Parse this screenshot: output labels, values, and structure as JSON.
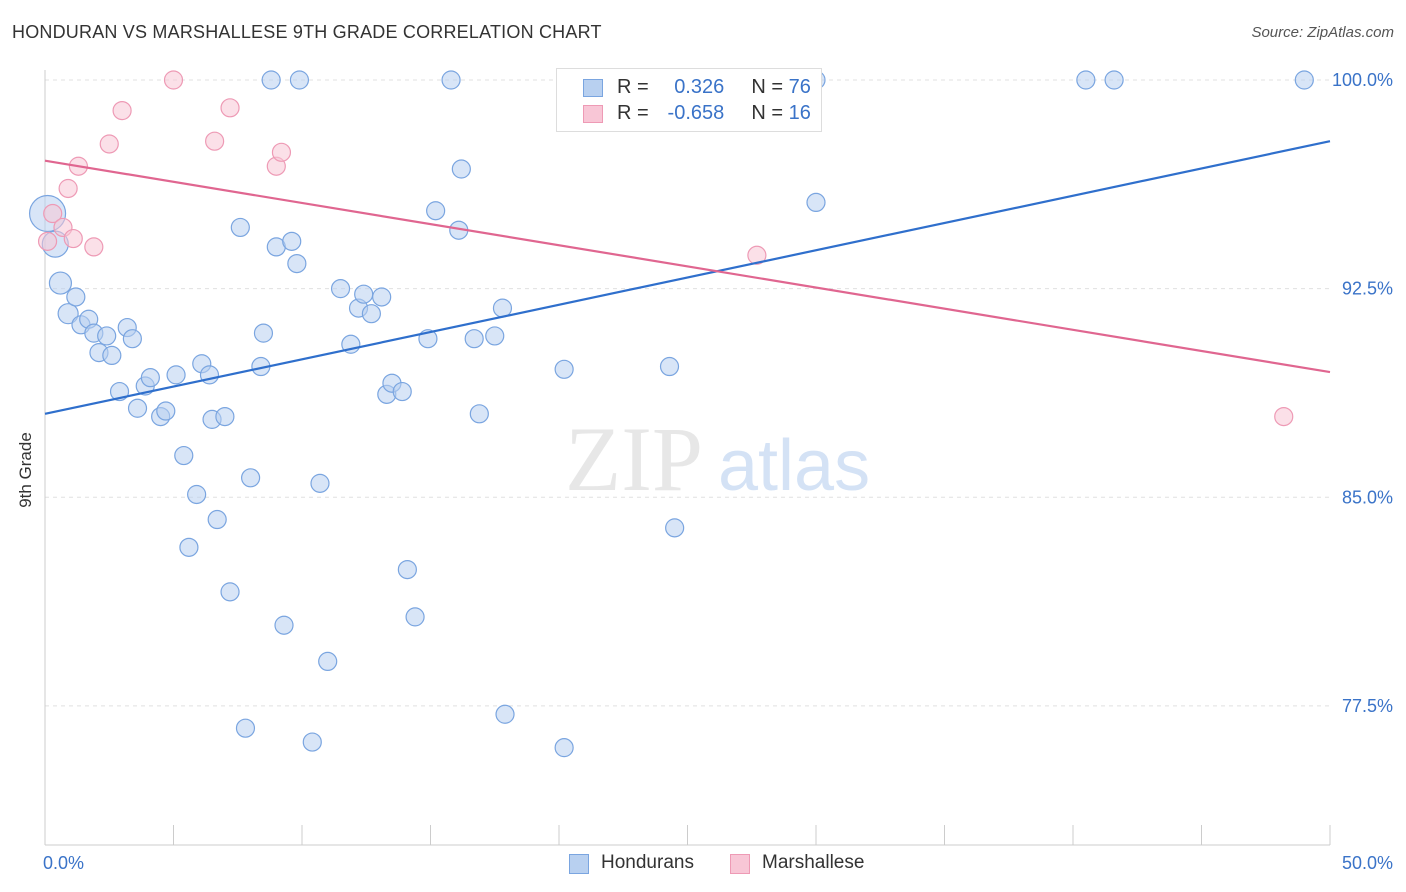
{
  "header": {
    "title": "HONDURAN VS MARSHALLESE 9TH GRADE CORRELATION CHART",
    "source": "Source: ZipAtlas.com"
  },
  "watermark": {
    "zip": "ZIP",
    "atlas": "atlas"
  },
  "legend_stats": [
    {
      "r_label": "R =",
      "r_value": "0.326",
      "n_label": "N =",
      "n_value": "76"
    },
    {
      "r_label": "R =",
      "r_value": "-0.658",
      "n_label": "N =",
      "n_value": "16"
    }
  ],
  "legend_bottom": [
    {
      "label": "Hondurans"
    },
    {
      "label": "Marshallese"
    }
  ],
  "colors": {
    "blue_fill": "#b8d0f0",
    "blue_stroke": "#7aa5e0",
    "blue_line": "#2f6fcc",
    "pink_fill": "#f8c6d6",
    "pink_stroke": "#ee9ab5",
    "pink_line": "#e06690",
    "tick_text": "#3a73c8",
    "grid": "#e0e0e0"
  },
  "chart_data": {
    "type": "scatter",
    "title": "HONDURAN VS MARSHALLESE 9TH GRADE CORRELATION CHART",
    "xlabel": "",
    "ylabel": "9th Grade",
    "x_tick_labels": [
      "0.0%",
      "50.0%"
    ],
    "y_tick_labels": [
      "100.0%",
      "92.5%",
      "85.0%",
      "77.5%"
    ],
    "y_ticks": [
      100.0,
      92.5,
      85.0,
      77.5
    ],
    "xlim": [
      0,
      50
    ],
    "ylim": [
      72.5,
      101.0
    ],
    "grid": true,
    "legend_position": "bottom",
    "series": [
      {
        "name": "Hondurans",
        "r": 0.326,
        "n": 76,
        "trend": {
          "x": [
            0,
            50
          ],
          "y": [
            88.0,
            97.8
          ]
        },
        "points": [
          {
            "x": 0.1,
            "y": 95.2,
            "s": 18
          },
          {
            "x": 0.4,
            "y": 94.1,
            "s": 13
          },
          {
            "x": 0.6,
            "y": 92.7,
            "s": 11
          },
          {
            "x": 0.9,
            "y": 91.6,
            "s": 10
          },
          {
            "x": 1.2,
            "y": 92.2,
            "s": 9
          },
          {
            "x": 1.4,
            "y": 91.2,
            "s": 9
          },
          {
            "x": 1.7,
            "y": 91.4,
            "s": 9
          },
          {
            "x": 1.9,
            "y": 90.9,
            "s": 9
          },
          {
            "x": 2.1,
            "y": 90.2,
            "s": 9
          },
          {
            "x": 2.4,
            "y": 90.8,
            "s": 9
          },
          {
            "x": 2.6,
            "y": 90.1,
            "s": 9
          },
          {
            "x": 2.9,
            "y": 88.8,
            "s": 9
          },
          {
            "x": 3.2,
            "y": 91.1,
            "s": 9
          },
          {
            "x": 3.4,
            "y": 90.7,
            "s": 9
          },
          {
            "x": 3.6,
            "y": 88.2,
            "s": 9
          },
          {
            "x": 3.9,
            "y": 89.0,
            "s": 9
          },
          {
            "x": 4.1,
            "y": 89.3,
            "s": 9
          },
          {
            "x": 4.5,
            "y": 87.9,
            "s": 9
          },
          {
            "x": 4.7,
            "y": 88.1,
            "s": 9
          },
          {
            "x": 5.1,
            "y": 89.4,
            "s": 9
          },
          {
            "x": 5.4,
            "y": 86.5,
            "s": 9
          },
          {
            "x": 5.6,
            "y": 83.2,
            "s": 9
          },
          {
            "x": 5.9,
            "y": 85.1,
            "s": 9
          },
          {
            "x": 6.1,
            "y": 89.8,
            "s": 9
          },
          {
            "x": 6.4,
            "y": 89.4,
            "s": 9
          },
          {
            "x": 6.5,
            "y": 87.8,
            "s": 9
          },
          {
            "x": 6.7,
            "y": 84.2,
            "s": 9
          },
          {
            "x": 7.0,
            "y": 87.9,
            "s": 9
          },
          {
            "x": 7.2,
            "y": 81.6,
            "s": 9
          },
          {
            "x": 7.6,
            "y": 94.7,
            "s": 9
          },
          {
            "x": 7.8,
            "y": 76.7,
            "s": 9
          },
          {
            "x": 8.0,
            "y": 85.7,
            "s": 9
          },
          {
            "x": 8.4,
            "y": 89.7,
            "s": 9
          },
          {
            "x": 8.5,
            "y": 90.9,
            "s": 9
          },
          {
            "x": 8.8,
            "y": 100.0,
            "s": 9
          },
          {
            "x": 9.0,
            "y": 94.0,
            "s": 9
          },
          {
            "x": 9.3,
            "y": 80.4,
            "s": 9
          },
          {
            "x": 9.6,
            "y": 94.2,
            "s": 9
          },
          {
            "x": 9.8,
            "y": 93.4,
            "s": 9
          },
          {
            "x": 9.9,
            "y": 100.0,
            "s": 9
          },
          {
            "x": 10.4,
            "y": 76.2,
            "s": 9
          },
          {
            "x": 10.7,
            "y": 85.5,
            "s": 9
          },
          {
            "x": 11.0,
            "y": 79.1,
            "s": 9
          },
          {
            "x": 11.5,
            "y": 92.5,
            "s": 9
          },
          {
            "x": 11.9,
            "y": 90.5,
            "s": 9
          },
          {
            "x": 12.2,
            "y": 91.8,
            "s": 9
          },
          {
            "x": 12.4,
            "y": 92.3,
            "s": 9
          },
          {
            "x": 12.7,
            "y": 91.6,
            "s": 9
          },
          {
            "x": 13.1,
            "y": 92.2,
            "s": 9
          },
          {
            "x": 13.3,
            "y": 88.7,
            "s": 9
          },
          {
            "x": 13.5,
            "y": 89.1,
            "s": 9
          },
          {
            "x": 13.9,
            "y": 88.8,
            "s": 9
          },
          {
            "x": 14.1,
            "y": 82.4,
            "s": 9
          },
          {
            "x": 14.4,
            "y": 80.7,
            "s": 9
          },
          {
            "x": 14.9,
            "y": 90.7,
            "s": 9
          },
          {
            "x": 15.2,
            "y": 95.3,
            "s": 9
          },
          {
            "x": 15.8,
            "y": 100.0,
            "s": 9
          },
          {
            "x": 16.1,
            "y": 94.6,
            "s": 9
          },
          {
            "x": 16.2,
            "y": 96.8,
            "s": 9
          },
          {
            "x": 16.7,
            "y": 90.7,
            "s": 9
          },
          {
            "x": 16.9,
            "y": 88.0,
            "s": 9
          },
          {
            "x": 17.5,
            "y": 90.8,
            "s": 9
          },
          {
            "x": 17.8,
            "y": 91.8,
            "s": 9
          },
          {
            "x": 17.9,
            "y": 77.2,
            "s": 9
          },
          {
            "x": 20.2,
            "y": 76.0,
            "s": 9
          },
          {
            "x": 20.2,
            "y": 89.6,
            "s": 9
          },
          {
            "x": 24.3,
            "y": 89.7,
            "s": 9
          },
          {
            "x": 24.5,
            "y": 83.9,
            "s": 9
          },
          {
            "x": 25.0,
            "y": 100.0,
            "s": 9
          },
          {
            "x": 27.5,
            "y": 100.0,
            "s": 9
          },
          {
            "x": 28.2,
            "y": 100.0,
            "s": 9
          },
          {
            "x": 30.0,
            "y": 100.0,
            "s": 9
          },
          {
            "x": 30.0,
            "y": 95.6,
            "s": 9
          },
          {
            "x": 40.5,
            "y": 100.0,
            "s": 9
          },
          {
            "x": 41.6,
            "y": 100.0,
            "s": 9
          },
          {
            "x": 49.0,
            "y": 100.0,
            "s": 9
          }
        ]
      },
      {
        "name": "Marshallese",
        "r": -0.658,
        "n": 16,
        "trend": {
          "x": [
            0,
            50
          ],
          "y": [
            97.1,
            89.5
          ]
        },
        "points": [
          {
            "x": 0.1,
            "y": 94.2,
            "s": 9
          },
          {
            "x": 0.3,
            "y": 95.2,
            "s": 9
          },
          {
            "x": 0.7,
            "y": 94.7,
            "s": 9
          },
          {
            "x": 0.9,
            "y": 96.1,
            "s": 9
          },
          {
            "x": 1.1,
            "y": 94.3,
            "s": 9
          },
          {
            "x": 1.3,
            "y": 96.9,
            "s": 9
          },
          {
            "x": 1.9,
            "y": 94.0,
            "s": 9
          },
          {
            "x": 2.5,
            "y": 97.7,
            "s": 9
          },
          {
            "x": 3.0,
            "y": 98.9,
            "s": 9
          },
          {
            "x": 5.0,
            "y": 100.0,
            "s": 9
          },
          {
            "x": 6.6,
            "y": 97.8,
            "s": 9
          },
          {
            "x": 7.2,
            "y": 99.0,
            "s": 9
          },
          {
            "x": 9.0,
            "y": 96.9,
            "s": 9
          },
          {
            "x": 9.2,
            "y": 97.4,
            "s": 9
          },
          {
            "x": 27.7,
            "y": 93.7,
            "s": 9
          },
          {
            "x": 48.2,
            "y": 87.9,
            "s": 9
          }
        ]
      }
    ]
  }
}
